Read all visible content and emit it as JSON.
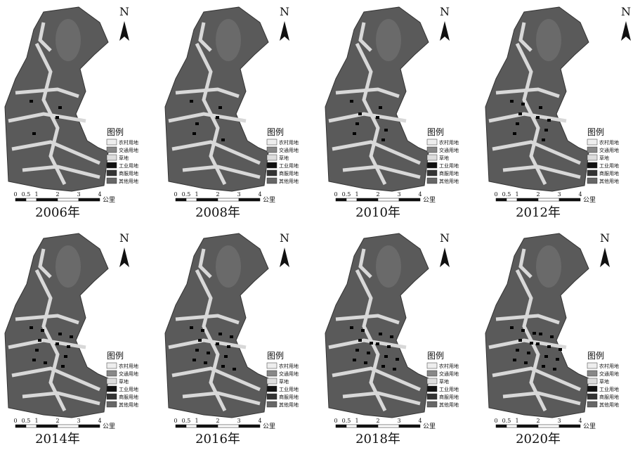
{
  "panels": [
    {
      "year": "2006年"
    },
    {
      "year": "2008年"
    },
    {
      "year": "2010年"
    },
    {
      "year": "2012年"
    },
    {
      "year": "2014年"
    },
    {
      "year": "2016年"
    },
    {
      "year": "2018年"
    },
    {
      "year": "2020年"
    }
  ],
  "north": "N",
  "legend": {
    "title": "图例",
    "items": [
      "农村用地",
      "交通用地",
      "草地",
      "工业用地",
      "商服用地",
      "其他用地"
    ]
  },
  "scale": {
    "ticks": [
      "0",
      "0.5",
      "1",
      "2",
      "3",
      "4"
    ],
    "unit": "公里"
  }
}
